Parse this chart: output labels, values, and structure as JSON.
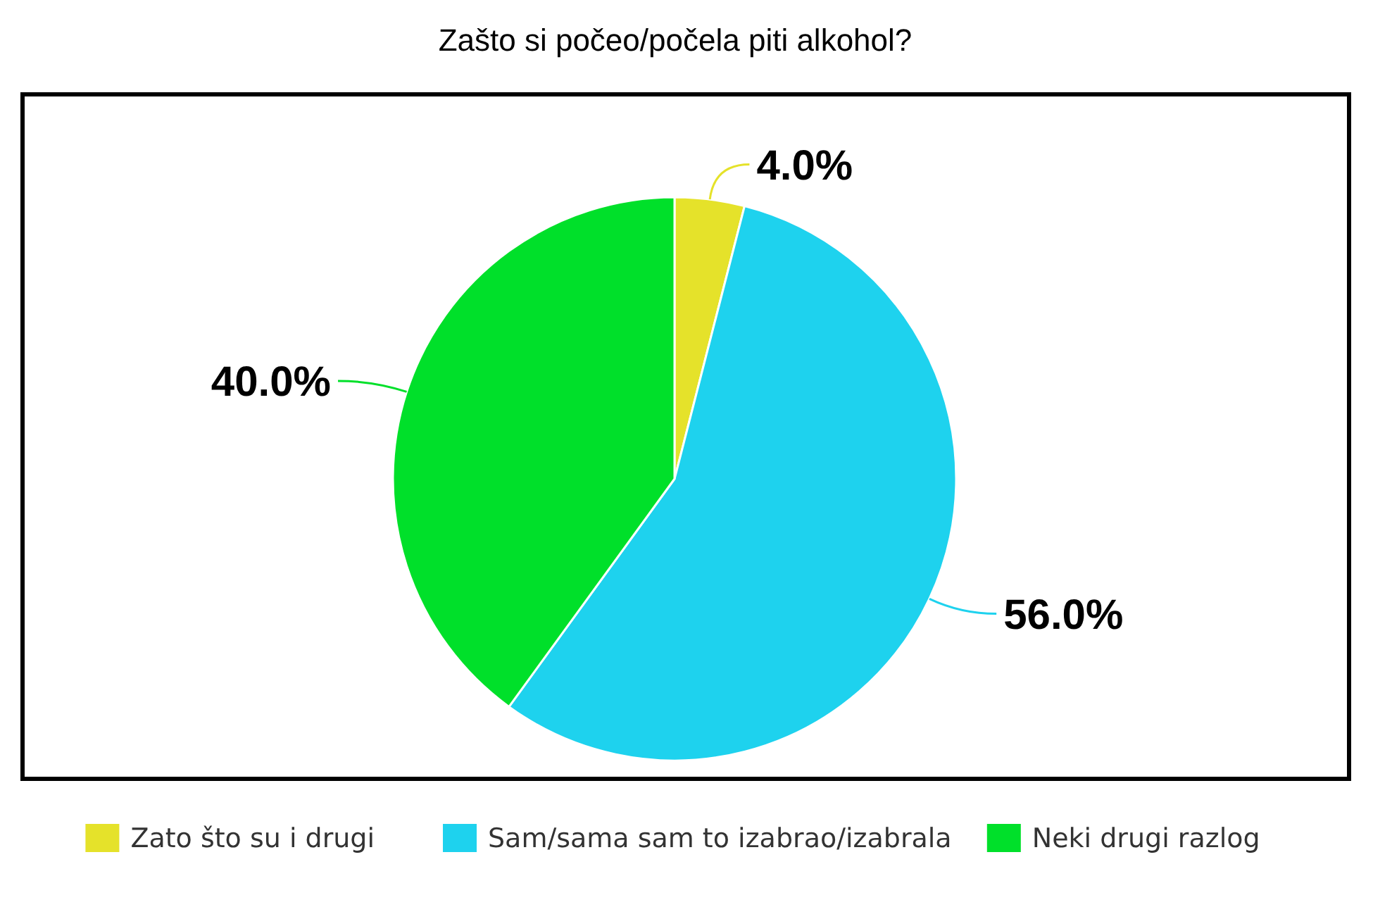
{
  "chart_data": {
    "type": "pie",
    "title": "Zašto si počeo/počela piti alkohol?",
    "categories": [
      "Zato što su i drugi",
      "Sam/sama sam to izabrao/izabrala",
      "Neki drugi razlog"
    ],
    "values": [
      4,
      56,
      40
    ],
    "colors": [
      "#e5e22a",
      "#1ed2ee",
      "#00e02a"
    ],
    "value_labels": [
      "4.0%",
      "56.0%",
      "40.0%"
    ],
    "legend": "bottom"
  }
}
